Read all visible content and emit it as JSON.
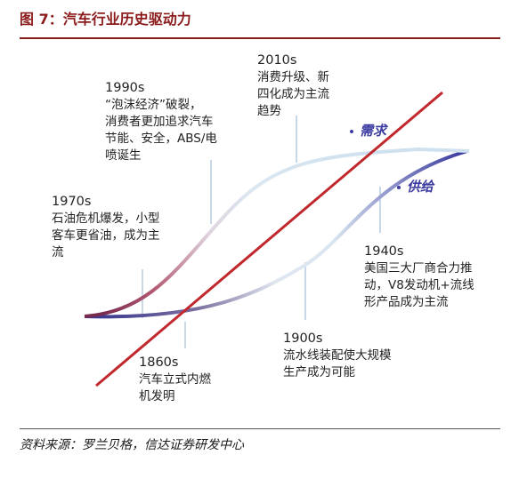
{
  "figure": {
    "title": "图 7：汽车行业历史驱动力",
    "source": "资料来源：罗兰贝格，信达证券研发中心"
  },
  "labels": {
    "demand": "需求",
    "supply": "供给"
  },
  "annotations": {
    "y1860": {
      "year": "1860s",
      "lines": [
        "汽车立式内燃",
        "机发明"
      ]
    },
    "y1900": {
      "year": "1900s",
      "lines": [
        "流水线装配使大规模",
        "生产成为可能"
      ]
    },
    "y1940": {
      "year": "1940s",
      "lines": [
        "美国三大厂商合力推",
        "动，V8发动机+流线",
        "形产品成为主流"
      ]
    },
    "y1970": {
      "year": "1970s",
      "lines": [
        "石油危机爆发，小型",
        "客车更省油，成为主",
        "流"
      ]
    },
    "y1990": {
      "year": "1990s",
      "lines": [
        "“泡沫经济”破裂，",
        "消费者更加追求汽车",
        "节能、安全，ABS/电",
        "喷诞生"
      ]
    },
    "y2010": {
      "year": "2010s",
      "lines": [
        "消费升级、新",
        "四化成为主流",
        "趋势"
      ]
    }
  },
  "colors": {
    "title": "#8b1a1a",
    "demand_curve": "#3a3aa0",
    "supply_line": "#c0282d",
    "s_curve_light": "#cfe0ef",
    "s_curve_red": "#c0282d",
    "leader": "#c8d8e8"
  }
}
